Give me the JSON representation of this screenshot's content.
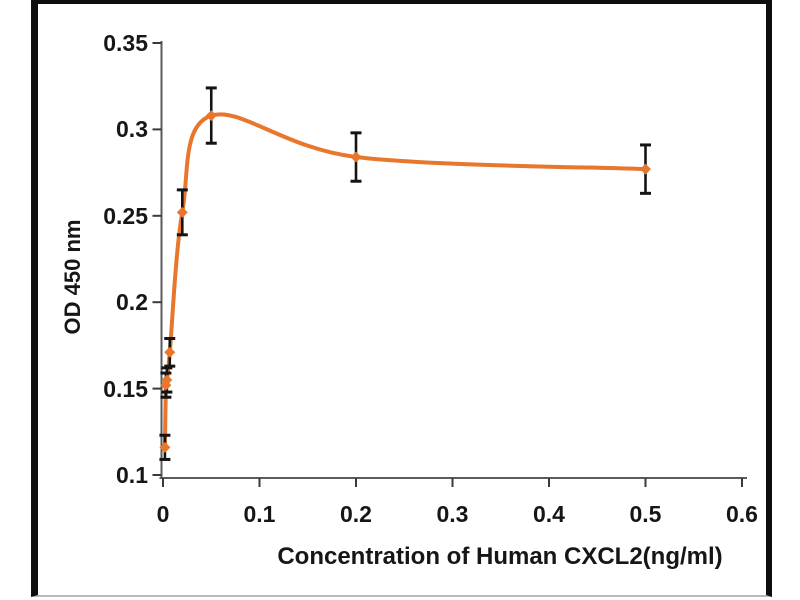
{
  "figure": {
    "background": "#ffffff",
    "frame_border_color": "#0e0e0e",
    "frame_bottom_color": "#b9b9b9"
  },
  "chart_data": {
    "type": "line",
    "title": "",
    "xlabel": "Concentration of Human CXCL2(ng/ml)",
    "ylabel": "OD 450 nm",
    "xlim": [
      0,
      0.6
    ],
    "ylim": [
      0.1,
      0.35
    ],
    "xticks": [
      0,
      0.1,
      0.2,
      0.3,
      0.4,
      0.5,
      0.6
    ],
    "xtick_labels": [
      "0",
      "0.1",
      "0.2",
      "0.3",
      "0.4",
      "0.5",
      "0.6"
    ],
    "yticks": [
      0.1,
      0.15,
      0.2,
      0.25,
      0.3,
      0.35
    ],
    "ytick_labels": [
      "0.1",
      "0.15",
      "0.2",
      "0.25",
      "0.3",
      "0.35"
    ],
    "grid": false,
    "legend": "none",
    "axis_color": "#5a5a5a",
    "tick_color": "#3a3a3a",
    "error_bar_color": "#141414",
    "series": [
      {
        "color": "#e8762b",
        "marker": "diamond",
        "line_smooth": true,
        "x": [
          0.002,
          0.003,
          0.004,
          0.007,
          0.02,
          0.05,
          0.2,
          0.5
        ],
        "y": [
          0.116,
          0.152,
          0.155,
          0.171,
          0.252,
          0.308,
          0.284,
          0.277
        ],
        "y_error": [
          0.007,
          0.007,
          0.007,
          0.008,
          0.013,
          0.016,
          0.014,
          0.014
        ]
      }
    ]
  }
}
